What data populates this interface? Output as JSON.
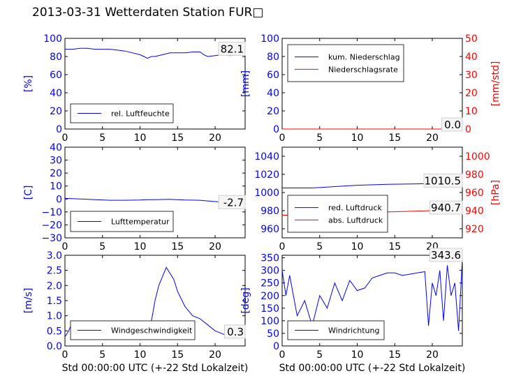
{
  "title": "2013-03-31 Wetterdaten Station FUR□",
  "x_axis_label": "Std 00:00:00 UTC (+-22 Std Lokalzeit)",
  "colors": {
    "primary": "#0000ff",
    "secondary": "#ff0000",
    "light": "#8080ff"
  },
  "chart_data": [
    {
      "type": "line",
      "ylabel": "[%]",
      "xlim": [
        0,
        24
      ],
      "ylim": [
        0,
        100
      ],
      "xticks": [
        "0",
        "5",
        "10",
        "15",
        "20"
      ],
      "yticks": [
        "0",
        "20",
        "40",
        "60",
        "80",
        "100"
      ],
      "current_value": "82.1",
      "series": [
        {
          "name": "rel. Luftfeuchte",
          "x": [
            0,
            1,
            2,
            3,
            4,
            5,
            6,
            7,
            8,
            9,
            10,
            10.5,
            11,
            11.5,
            12,
            13,
            14,
            15,
            16,
            17,
            18,
            18.5,
            19,
            20,
            21,
            22,
            23,
            24
          ],
          "y": [
            88,
            88,
            89,
            89,
            88,
            88,
            88,
            87,
            86,
            84,
            82,
            80,
            78,
            80,
            80,
            82,
            84,
            84,
            84,
            85,
            85,
            82,
            80,
            81,
            82,
            81,
            82,
            82
          ]
        }
      ]
    },
    {
      "type": "line",
      "ylabel": "[mm]",
      "y2label": "[mm/std]",
      "xlim": [
        0,
        24
      ],
      "ylim": [
        0,
        100
      ],
      "y2lim": [
        0,
        50
      ],
      "xticks": [
        "0",
        "5",
        "10",
        "15",
        "20"
      ],
      "yticks": [
        "0",
        "20",
        "40",
        "60",
        "80",
        "100"
      ],
      "y2ticks": [
        "0",
        "10",
        "20",
        "30",
        "40",
        "50"
      ],
      "current_value": "0.0",
      "current_value2": "0.0",
      "series": [
        {
          "name": "kum. Niederschlag",
          "x": [
            0,
            24
          ],
          "y": [
            0,
            0
          ]
        },
        {
          "name": "Niederschlagsrate",
          "x": [
            0,
            24
          ],
          "y": [
            0,
            0
          ]
        }
      ]
    },
    {
      "type": "line",
      "ylabel": "[C]",
      "xlim": [
        0,
        24
      ],
      "ylim": [
        -30,
        40
      ],
      "xticks": [
        "0",
        "5",
        "10",
        "15",
        "20"
      ],
      "yticks": [
        "−30",
        "−20",
        "−10",
        "0",
        "10",
        "20",
        "30",
        "40"
      ],
      "current_value": "-2.7",
      "series": [
        {
          "name": "Lufttemperatur",
          "x": [
            0,
            2,
            4,
            6,
            8,
            10,
            11,
            12,
            14,
            16,
            18,
            19,
            20,
            21,
            22,
            23,
            24
          ],
          "y": [
            0.5,
            0,
            -0.5,
            -1,
            -1,
            -0.8,
            -0.5,
            -0.5,
            -0.3,
            -0.8,
            -1,
            -1.5,
            -2,
            -2.5,
            -2.7,
            -2.5,
            -2.7
          ]
        }
      ]
    },
    {
      "type": "line",
      "y2label": "[hPa]",
      "xlim": [
        0,
        24
      ],
      "ylim": [
        950,
        1050
      ],
      "y2lim": [
        910,
        1010
      ],
      "xticks": [
        "0",
        "5",
        "10",
        "15",
        "20"
      ],
      "yticks": [
        "960",
        "980",
        "1000",
        "1020",
        "1040"
      ],
      "y2ticks": [
        "920",
        "940",
        "960",
        "980",
        "1000"
      ],
      "current_value": "1010.5",
      "current_value2": "940.7",
      "series": [
        {
          "name": "red. Luftdruck",
          "x": [
            0,
            4,
            5,
            8,
            10,
            14,
            18,
            20,
            22,
            24
          ],
          "y": [
            1005,
            1005,
            1005.5,
            1007,
            1008,
            1009,
            1009.5,
            1010,
            1010.5,
            1010.5
          ]
        },
        {
          "name": "abs. Luftdruck",
          "x": [
            0,
            4,
            5,
            8,
            10,
            14,
            18,
            20,
            22,
            24
          ],
          "y": [
            935,
            935,
            935.5,
            937,
            937.5,
            938.5,
            939.5,
            940,
            940.5,
            940.7
          ]
        }
      ]
    },
    {
      "type": "line",
      "ylabel": "[m/s]",
      "xlim": [
        0,
        24
      ],
      "ylim": [
        0,
        3
      ],
      "xticks": [
        "0",
        "5",
        "10",
        "15",
        "20"
      ],
      "yticks": [
        "0.0",
        "0.5",
        "1.0",
        "1.5",
        "2.0",
        "2.5",
        "3.0"
      ],
      "current_value": "0.3",
      "series": [
        {
          "name": "Windgeschwindigkeit",
          "x": [
            0,
            0.5,
            1,
            2,
            3,
            4,
            5,
            6,
            7,
            8,
            9,
            10,
            11,
            11.5,
            12,
            12.5,
            13,
            13.5,
            14,
            14.5,
            15,
            16,
            17,
            18,
            19,
            20,
            21,
            22,
            23,
            24
          ],
          "y": [
            0.3,
            0.5,
            0.8,
            0.7,
            0.6,
            0.7,
            0.6,
            0.7,
            0.6,
            0.6,
            0.6,
            0.6,
            0.7,
            0.8,
            1.5,
            2.0,
            2.3,
            2.6,
            2.4,
            2.2,
            1.8,
            1.3,
            1.0,
            0.9,
            0.7,
            0.5,
            0.4,
            0.3,
            0.3,
            0.3
          ]
        }
      ]
    },
    {
      "type": "line",
      "ylabel": "[deg]",
      "xlim": [
        0,
        24
      ],
      "ylim": [
        0,
        360
      ],
      "xticks": [
        "0",
        "5",
        "10",
        "15",
        "20"
      ],
      "yticks": [
        "0",
        "50",
        "100",
        "150",
        "200",
        "250",
        "300",
        "350"
      ],
      "current_value": "343.6",
      "series": [
        {
          "name": "Windrichtung",
          "x": [
            0,
            0.5,
            1,
            2,
            3,
            4,
            5,
            6,
            7,
            8,
            9,
            10,
            11,
            12,
            13,
            14,
            15,
            16,
            17,
            18,
            19,
            19.5,
            20,
            20.5,
            21,
            21.5,
            22,
            22.5,
            23,
            23.5,
            24
          ],
          "y": [
            300,
            200,
            280,
            120,
            180,
            80,
            200,
            150,
            250,
            180,
            260,
            220,
            230,
            270,
            280,
            290,
            290,
            280,
            285,
            290,
            295,
            80,
            250,
            200,
            300,
            100,
            320,
            200,
            250,
            60,
            343
          ]
        }
      ]
    }
  ]
}
